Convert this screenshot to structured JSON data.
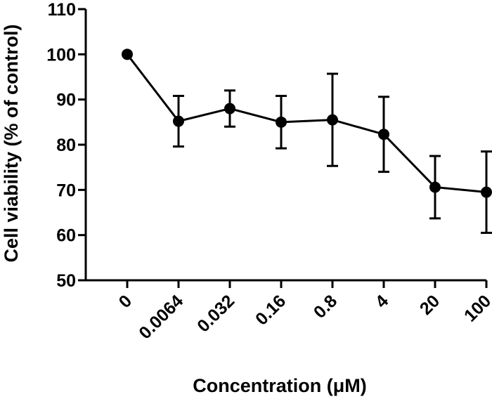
{
  "chart_data": {
    "type": "line",
    "title": "",
    "xlabel": "Concentration (μM)",
    "ylabel": "Cell viability (% of control)",
    "categories": [
      "0",
      "0.0064",
      "0.032",
      "0.16",
      "0.8",
      "4",
      "20",
      "100"
    ],
    "series": [
      {
        "values": [
          100,
          85.2,
          88.0,
          85.0,
          85.5,
          82.3,
          70.6,
          69.5
        ],
        "errors": [
          0,
          5.6,
          4.0,
          5.8,
          10.2,
          8.3,
          6.9,
          9.0
        ],
        "color": "#000000"
      }
    ],
    "ylim": [
      50,
      110
    ],
    "yticks": [
      50,
      60,
      70,
      80,
      90,
      100,
      110
    ],
    "grid": false,
    "legend": "none"
  }
}
